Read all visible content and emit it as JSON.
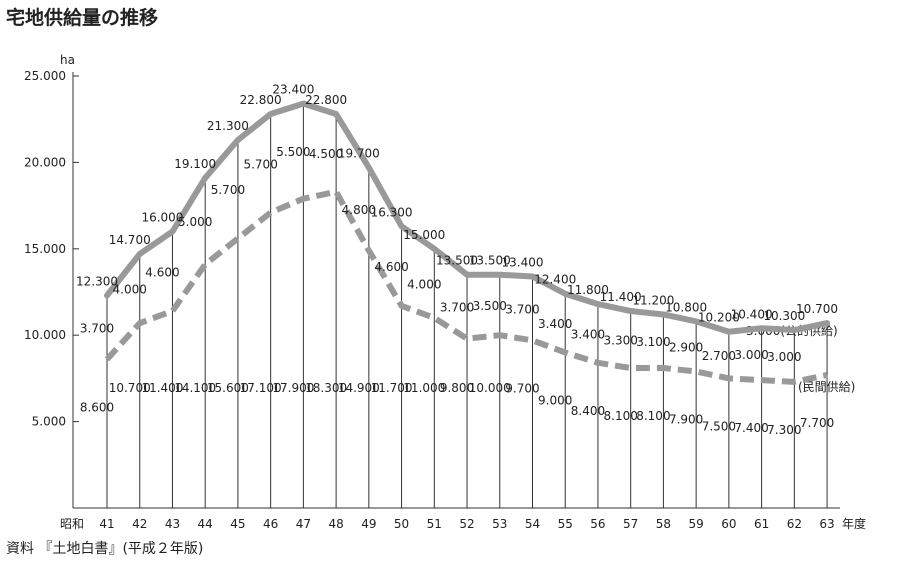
{
  "chart_data": {
    "type": "line",
    "title": "宅地供給量の推移",
    "ylabel": "ha",
    "ylim": [
      0,
      25000
    ],
    "yticks": [
      "5.000",
      "10.000",
      "15.000",
      "20.000",
      "25.000"
    ],
    "x_prefix": "昭和",
    "xlabel": "年度",
    "categories": [
      "41",
      "42",
      "43",
      "44",
      "45",
      "46",
      "47",
      "48",
      "49",
      "50",
      "51",
      "52",
      "53",
      "54",
      "55",
      "56",
      "57",
      "58",
      "59",
      "60",
      "61",
      "62",
      "63"
    ],
    "series": [
      {
        "name": "公的供給",
        "values": [
          3700,
          4000,
          4600,
          5000,
          5700,
          5700,
          5500,
          4500,
          4800,
          4600,
          4000,
          3700,
          3500,
          3700,
          3400,
          3400,
          3300,
          3100,
          2900,
          2700,
          3000,
          3000,
          3000
        ],
        "labels": [
          "3.700",
          "4.000",
          "4.600",
          "5.000",
          "5.700",
          "5.700",
          "5.500",
          "4.500",
          "4.800",
          "4.600",
          "4.000",
          "3.700",
          "3.500",
          "3.700",
          "3.400",
          "3.400",
          "3.300",
          "3.100",
          "2.900",
          "2.700",
          "3.000",
          "3.000",
          "3.000"
        ]
      },
      {
        "name": "民間供給",
        "values": [
          8600,
          10700,
          11400,
          14100,
          15600,
          17100,
          17900,
          18300,
          14900,
          11700,
          11000,
          9800,
          10000,
          9700,
          9000,
          8400,
          8100,
          8100,
          7900,
          7500,
          7400,
          7300,
          7700
        ],
        "labels": [
          "8.600",
          "10.700",
          "11.400",
          "14.100",
          "15.600",
          "17.100",
          "17.900",
          "18.300",
          "14.900",
          "11.700",
          "11.000",
          "9.800",
          "10.000",
          "9.700",
          "9.000",
          "8.400",
          "8.100",
          "8.100",
          "7.900",
          "7.500",
          "7.400",
          "7.300",
          "7.700"
        ]
      }
    ],
    "totals": {
      "values": [
        12300,
        14700,
        16000,
        19100,
        21300,
        22800,
        23400,
        22800,
        19700,
        16300,
        15000,
        13500,
        13500,
        13400,
        12400,
        11800,
        11400,
        11200,
        10800,
        10200,
        10400,
        10300,
        10700
      ],
      "labels": [
        "12.300",
        "14.700",
        "16.000",
        "19.100",
        "21.300",
        "22.800",
        "23.400",
        "22.800",
        "19.700",
        "16.300",
        "15.000",
        "13.500",
        "13.500",
        "13.400",
        "12.400",
        "11.800",
        "11.400",
        "11.200",
        "10.800",
        "10.200",
        "10.400",
        "10.300",
        "10.700"
      ]
    },
    "legend_public": "3.000(公的供給)",
    "legend_private": "(民間供給)",
    "source": "資料 『土地白書』(平成２年版)",
    "colors": {
      "line": "#999999",
      "text": "#222222",
      "axis": "#333333"
    }
  }
}
